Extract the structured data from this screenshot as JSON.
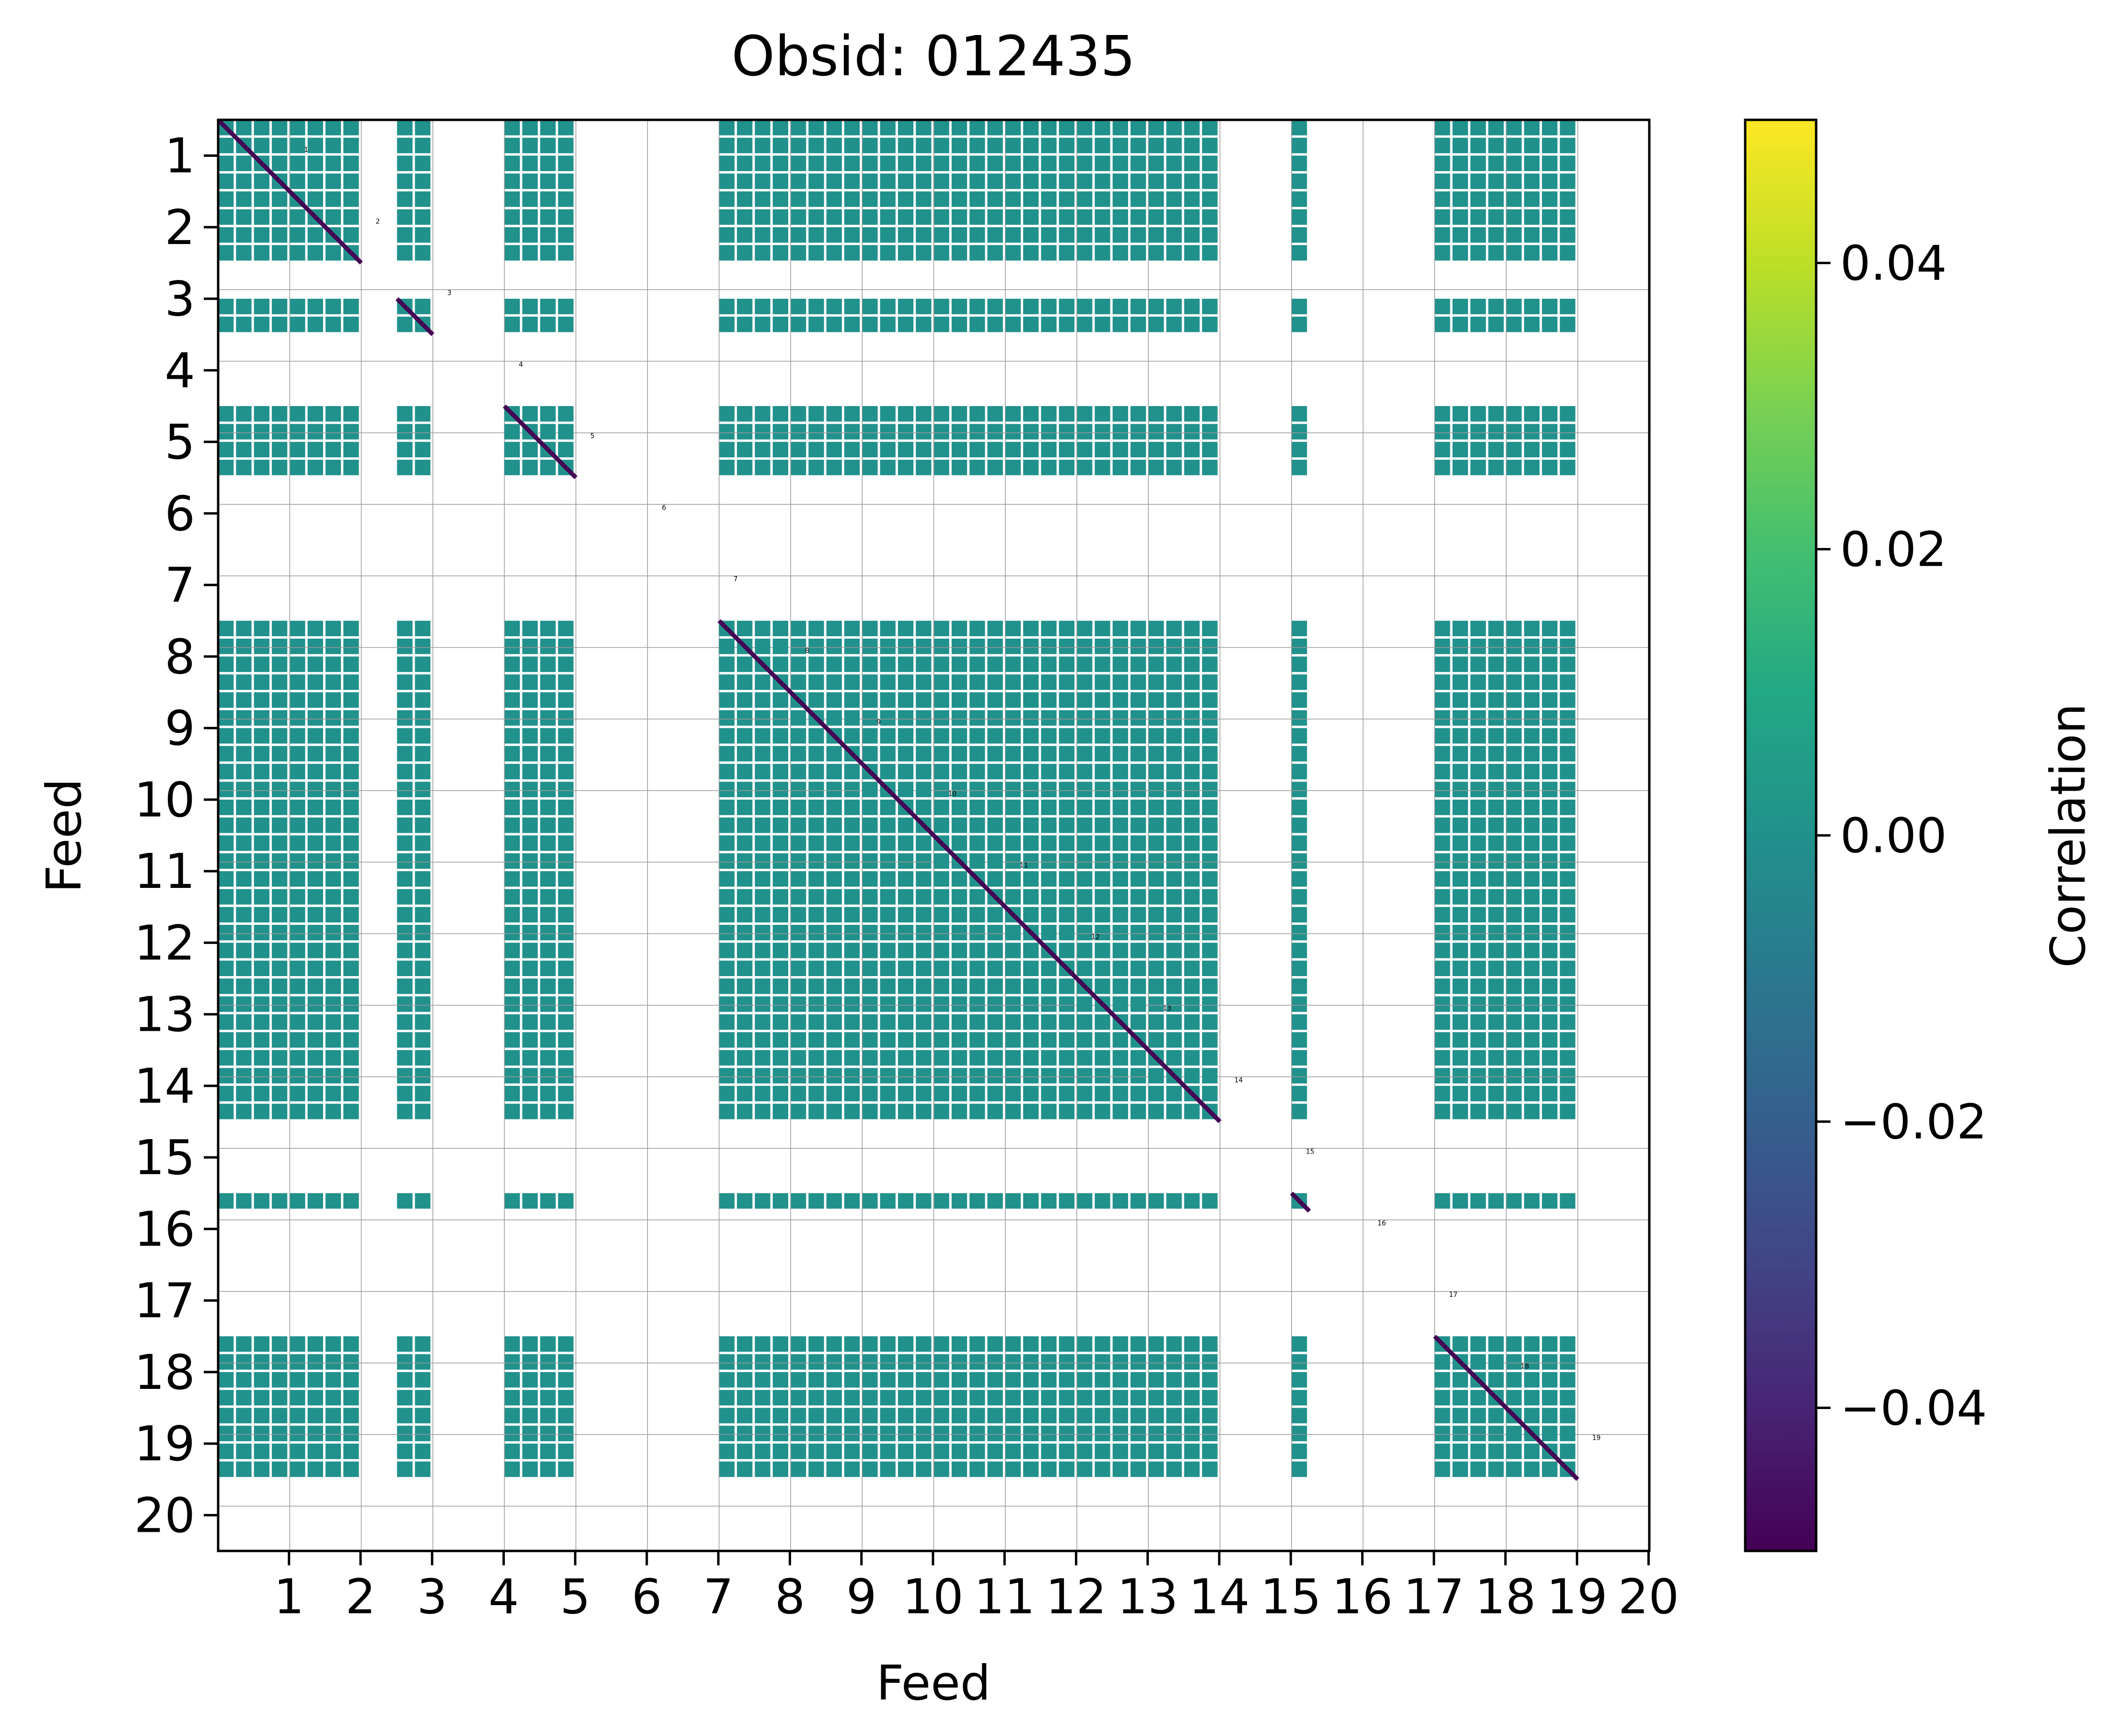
{
  "chart_data": {
    "type": "heatmap",
    "title": "Obsid: 012435",
    "xlabel": "Feed",
    "ylabel": "Feed",
    "colorbar_label": "Correlation",
    "colormap": "viridis",
    "clim": [
      -0.05,
      0.05
    ],
    "colorbar_ticks": [
      {
        "value": -0.04,
        "label": "−0.04"
      },
      {
        "value": -0.02,
        "label": "−0.02"
      },
      {
        "value": 0.0,
        "label": "0.00"
      },
      {
        "value": 0.02,
        "label": "0.02"
      },
      {
        "value": 0.04,
        "label": "0.04"
      }
    ],
    "feeds": [
      "1",
      "2",
      "3",
      "4",
      "5",
      "6",
      "7",
      "8",
      "9",
      "10",
      "11",
      "12",
      "13",
      "14",
      "15",
      "16",
      "17",
      "18",
      "19",
      "20"
    ],
    "sidebands_per_feed": 4,
    "active_sidebands": {
      "1": [
        0,
        1,
        2,
        3
      ],
      "2": [
        0,
        1,
        2,
        3
      ],
      "3": [
        2,
        3
      ],
      "4": [],
      "5": [
        0,
        1,
        2,
        3
      ],
      "6": [],
      "7": [],
      "8": [
        0,
        1,
        2,
        3
      ],
      "9": [
        0,
        1,
        2,
        3
      ],
      "10": [
        0,
        1,
        2,
        3
      ],
      "11": [
        0,
        1,
        2,
        3
      ],
      "12": [
        0,
        1,
        2,
        3
      ],
      "13": [
        0,
        1,
        2,
        3
      ],
      "14": [
        0,
        1,
        2,
        3
      ],
      "15": [],
      "16": [
        0
      ],
      "17": [],
      "18": [
        0,
        1,
        2,
        3
      ],
      "19": [
        0,
        1,
        2,
        3
      ],
      "20": []
    },
    "background_value": 0.0,
    "diagonal_value": -0.05,
    "colors": {
      "block": "#21918c",
      "diagonal": "#440154",
      "grid": "#9a9a9a",
      "background": "#ffffff"
    }
  }
}
